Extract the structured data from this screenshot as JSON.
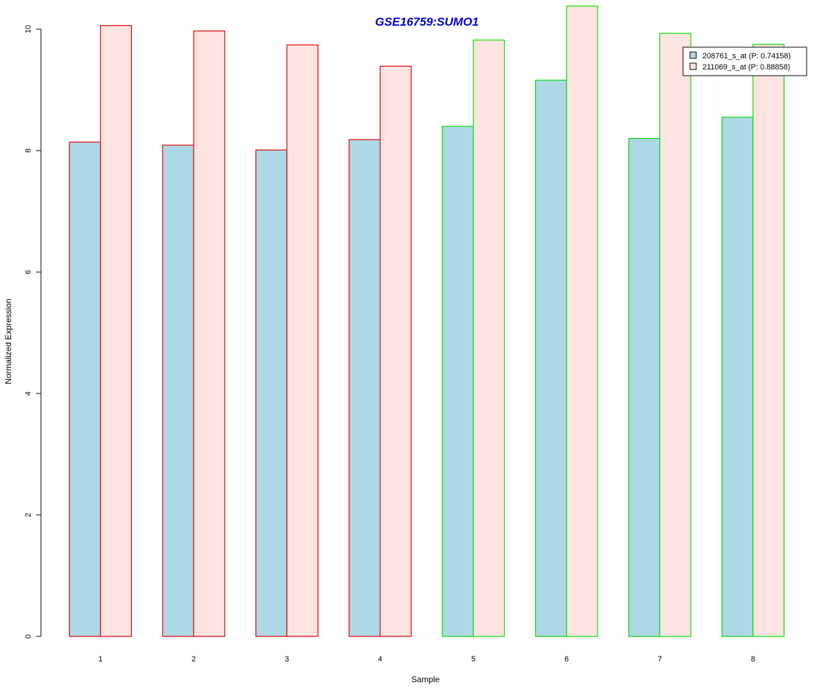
{
  "chart_data": {
    "type": "bar",
    "title": "GSE16759:SUMO1",
    "xlabel": "Sample",
    "ylabel": "Normalized Expression",
    "categories": [
      "1",
      "2",
      "3",
      "4",
      "5",
      "6",
      "7",
      "8"
    ],
    "ylim": [
      0,
      10.4
    ],
    "yticks": [
      0,
      2,
      4,
      6,
      8,
      10
    ],
    "grid": false,
    "legend_position": "top-right",
    "series": [
      {
        "name": "208761_s_at (P: 0.74158)",
        "fill": "#add8e6",
        "values": [
          8.14,
          8.09,
          8.01,
          8.18,
          8.4,
          9.16,
          8.2,
          8.55
        ]
      },
      {
        "name": "211069_s_at (P: 0.88858)",
        "fill": "#ffe4e1",
        "values": [
          10.06,
          9.97,
          9.74,
          9.39,
          9.82,
          10.38,
          9.93,
          9.75
        ]
      }
    ],
    "group_border_colors": [
      "#dd0000",
      "#dd0000",
      "#dd0000",
      "#dd0000",
      "#00dd00",
      "#00dd00",
      "#00dd00",
      "#00dd00"
    ]
  }
}
